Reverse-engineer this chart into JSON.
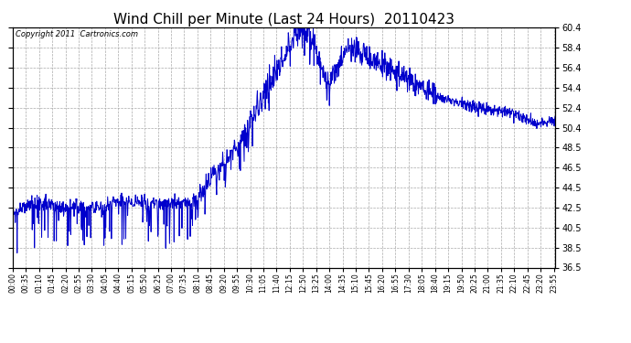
{
  "title": "Wind Chill per Minute (Last 24 Hours)  20110423",
  "copyright": "Copyright 2011  Cartronics.com",
  "line_color": "#0000CC",
  "bg_color": "#ffffff",
  "grid_color": "#aaaaaa",
  "ylim": [
    36.5,
    60.4
  ],
  "yticks": [
    36.5,
    38.5,
    40.5,
    42.5,
    44.5,
    46.5,
    48.5,
    50.4,
    52.4,
    54.4,
    56.4,
    58.4,
    60.4
  ],
  "xlabel_rotation": 90,
  "title_fontsize": 11
}
